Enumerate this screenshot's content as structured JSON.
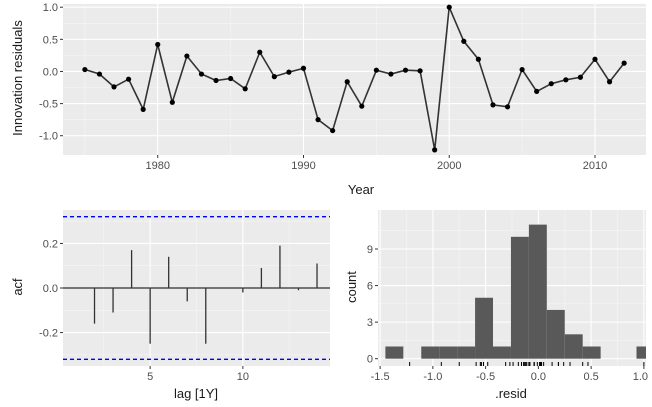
{
  "chart_data": [
    {
      "type": "line",
      "xlabel": "Year",
      "ylabel": "Innovation residuals",
      "xlim": [
        1973.5,
        2013.5
      ],
      "ylim": [
        -1.3,
        1.05
      ],
      "xticks": [
        1980,
        1990,
        2000,
        2010
      ],
      "yticks": [
        -1.0,
        -0.5,
        0.0,
        0.5,
        1.0
      ],
      "xtick_labels": [
        "1980",
        "1990",
        "2000",
        "2010"
      ],
      "ytick_labels": [
        "-1.0",
        "-0.5",
        "0.0",
        "0.5",
        "1.0"
      ],
      "grid": true,
      "x": [
        1975,
        1976,
        1977,
        1978,
        1979,
        1980,
        1981,
        1982,
        1983,
        1984,
        1985,
        1986,
        1987,
        1988,
        1989,
        1990,
        1991,
        1992,
        1993,
        1994,
        1995,
        1996,
        1997,
        1998,
        1999,
        2000,
        2001,
        2002,
        2003,
        2004,
        2005,
        2006,
        2007,
        2008,
        2009,
        2010,
        2011,
        2012
      ],
      "y": [
        0.03,
        -0.04,
        -0.24,
        -0.12,
        -0.59,
        0.42,
        -0.48,
        0.24,
        -0.04,
        -0.14,
        -0.11,
        -0.27,
        0.3,
        -0.08,
        -0.01,
        0.05,
        -0.75,
        -0.92,
        -0.16,
        -0.54,
        0.02,
        -0.04,
        0.02,
        0.01,
        -1.22,
        1.0,
        0.47,
        0.19,
        -0.52,
        -0.55,
        0.03,
        -0.31,
        -0.19,
        -0.13,
        -0.09,
        0.19,
        -0.16,
        0.13
      ]
    },
    {
      "type": "bar",
      "subtype": "acf",
      "xlabel": "lag [1Y]",
      "ylabel": "acf",
      "xlim": [
        0.3,
        14.7
      ],
      "ylim": [
        -0.35,
        0.35
      ],
      "xticks": [
        5,
        10
      ],
      "yticks": [
        -0.2,
        0.0,
        0.2
      ],
      "xtick_labels": [
        "5",
        "10"
      ],
      "ytick_labels": [
        "-0.2",
        "0.0",
        "0.2"
      ],
      "confidence_bounds": [
        0.32,
        -0.32
      ],
      "lags": [
        1,
        2,
        3,
        4,
        5,
        6,
        7,
        8,
        9,
        10,
        11,
        12,
        13,
        14
      ],
      "values": [
        0.0,
        -0.16,
        -0.11,
        0.17,
        -0.25,
        0.14,
        -0.06,
        -0.25,
        0.0,
        -0.02,
        0.09,
        0.19,
        -0.01,
        0.11
      ],
      "grid": true
    },
    {
      "type": "bar",
      "subtype": "histogram",
      "xlabel": ".resid",
      "ylabel": "count",
      "xlim": [
        -1.52,
        1.02
      ],
      "ylim": [
        -0.6,
        12.2
      ],
      "xticks": [
        -1.5,
        -1.0,
        -0.5,
        0.0,
        0.5,
        1.0
      ],
      "yticks": [
        0,
        3,
        6,
        9
      ],
      "xtick_labels": [
        "-1.5",
        "-1.0",
        "-0.5",
        "0.0",
        "0.5",
        "1.0"
      ],
      "ytick_labels": [
        "0",
        "3",
        "6",
        "9"
      ],
      "bins": [
        {
          "left": -1.45,
          "right": -1.28,
          "count": 1
        },
        {
          "left": -1.28,
          "right": -1.11,
          "count": 0
        },
        {
          "left": -1.11,
          "right": -0.94,
          "count": 1
        },
        {
          "left": -0.94,
          "right": -0.77,
          "count": 1
        },
        {
          "left": -0.77,
          "right": -0.6,
          "count": 1
        },
        {
          "left": -0.6,
          "right": -0.43,
          "count": 5
        },
        {
          "left": -0.43,
          "right": -0.26,
          "count": 1
        },
        {
          "left": -0.26,
          "right": -0.09,
          "count": 10
        },
        {
          "left": -0.09,
          "right": 0.08,
          "count": 11
        },
        {
          "left": 0.08,
          "right": 0.25,
          "count": 4
        },
        {
          "left": 0.25,
          "right": 0.42,
          "count": 2
        },
        {
          "left": 0.42,
          "right": 0.59,
          "count": 1
        },
        {
          "left": 0.59,
          "right": 0.76,
          "count": 0
        },
        {
          "left": 0.76,
          "right": 0.93,
          "count": 0
        },
        {
          "left": 0.93,
          "right": 1.1,
          "count": 1
        }
      ],
      "rug": [
        -1.22,
        -0.92,
        -0.75,
        -0.59,
        -0.55,
        -0.54,
        -0.52,
        -0.48,
        -0.31,
        -0.27,
        -0.24,
        -0.19,
        -0.16,
        -0.16,
        -0.14,
        -0.13,
        -0.12,
        -0.11,
        -0.09,
        -0.08,
        -0.04,
        -0.04,
        -0.04,
        -0.01,
        0.01,
        0.02,
        0.02,
        0.03,
        0.03,
        0.05,
        0.13,
        0.19,
        0.19,
        0.24,
        0.3,
        0.42,
        0.47,
        1.0
      ],
      "grid": true
    }
  ],
  "colors": {
    "panel_bg": "#ebebeb",
    "grid_major": "#ffffff",
    "grid_minor": "#f5f5f5",
    "line": "#333333",
    "point": "#000000",
    "bar_fill": "#595959",
    "ci_line": "#0000ff",
    "zero_line": "#000000"
  }
}
